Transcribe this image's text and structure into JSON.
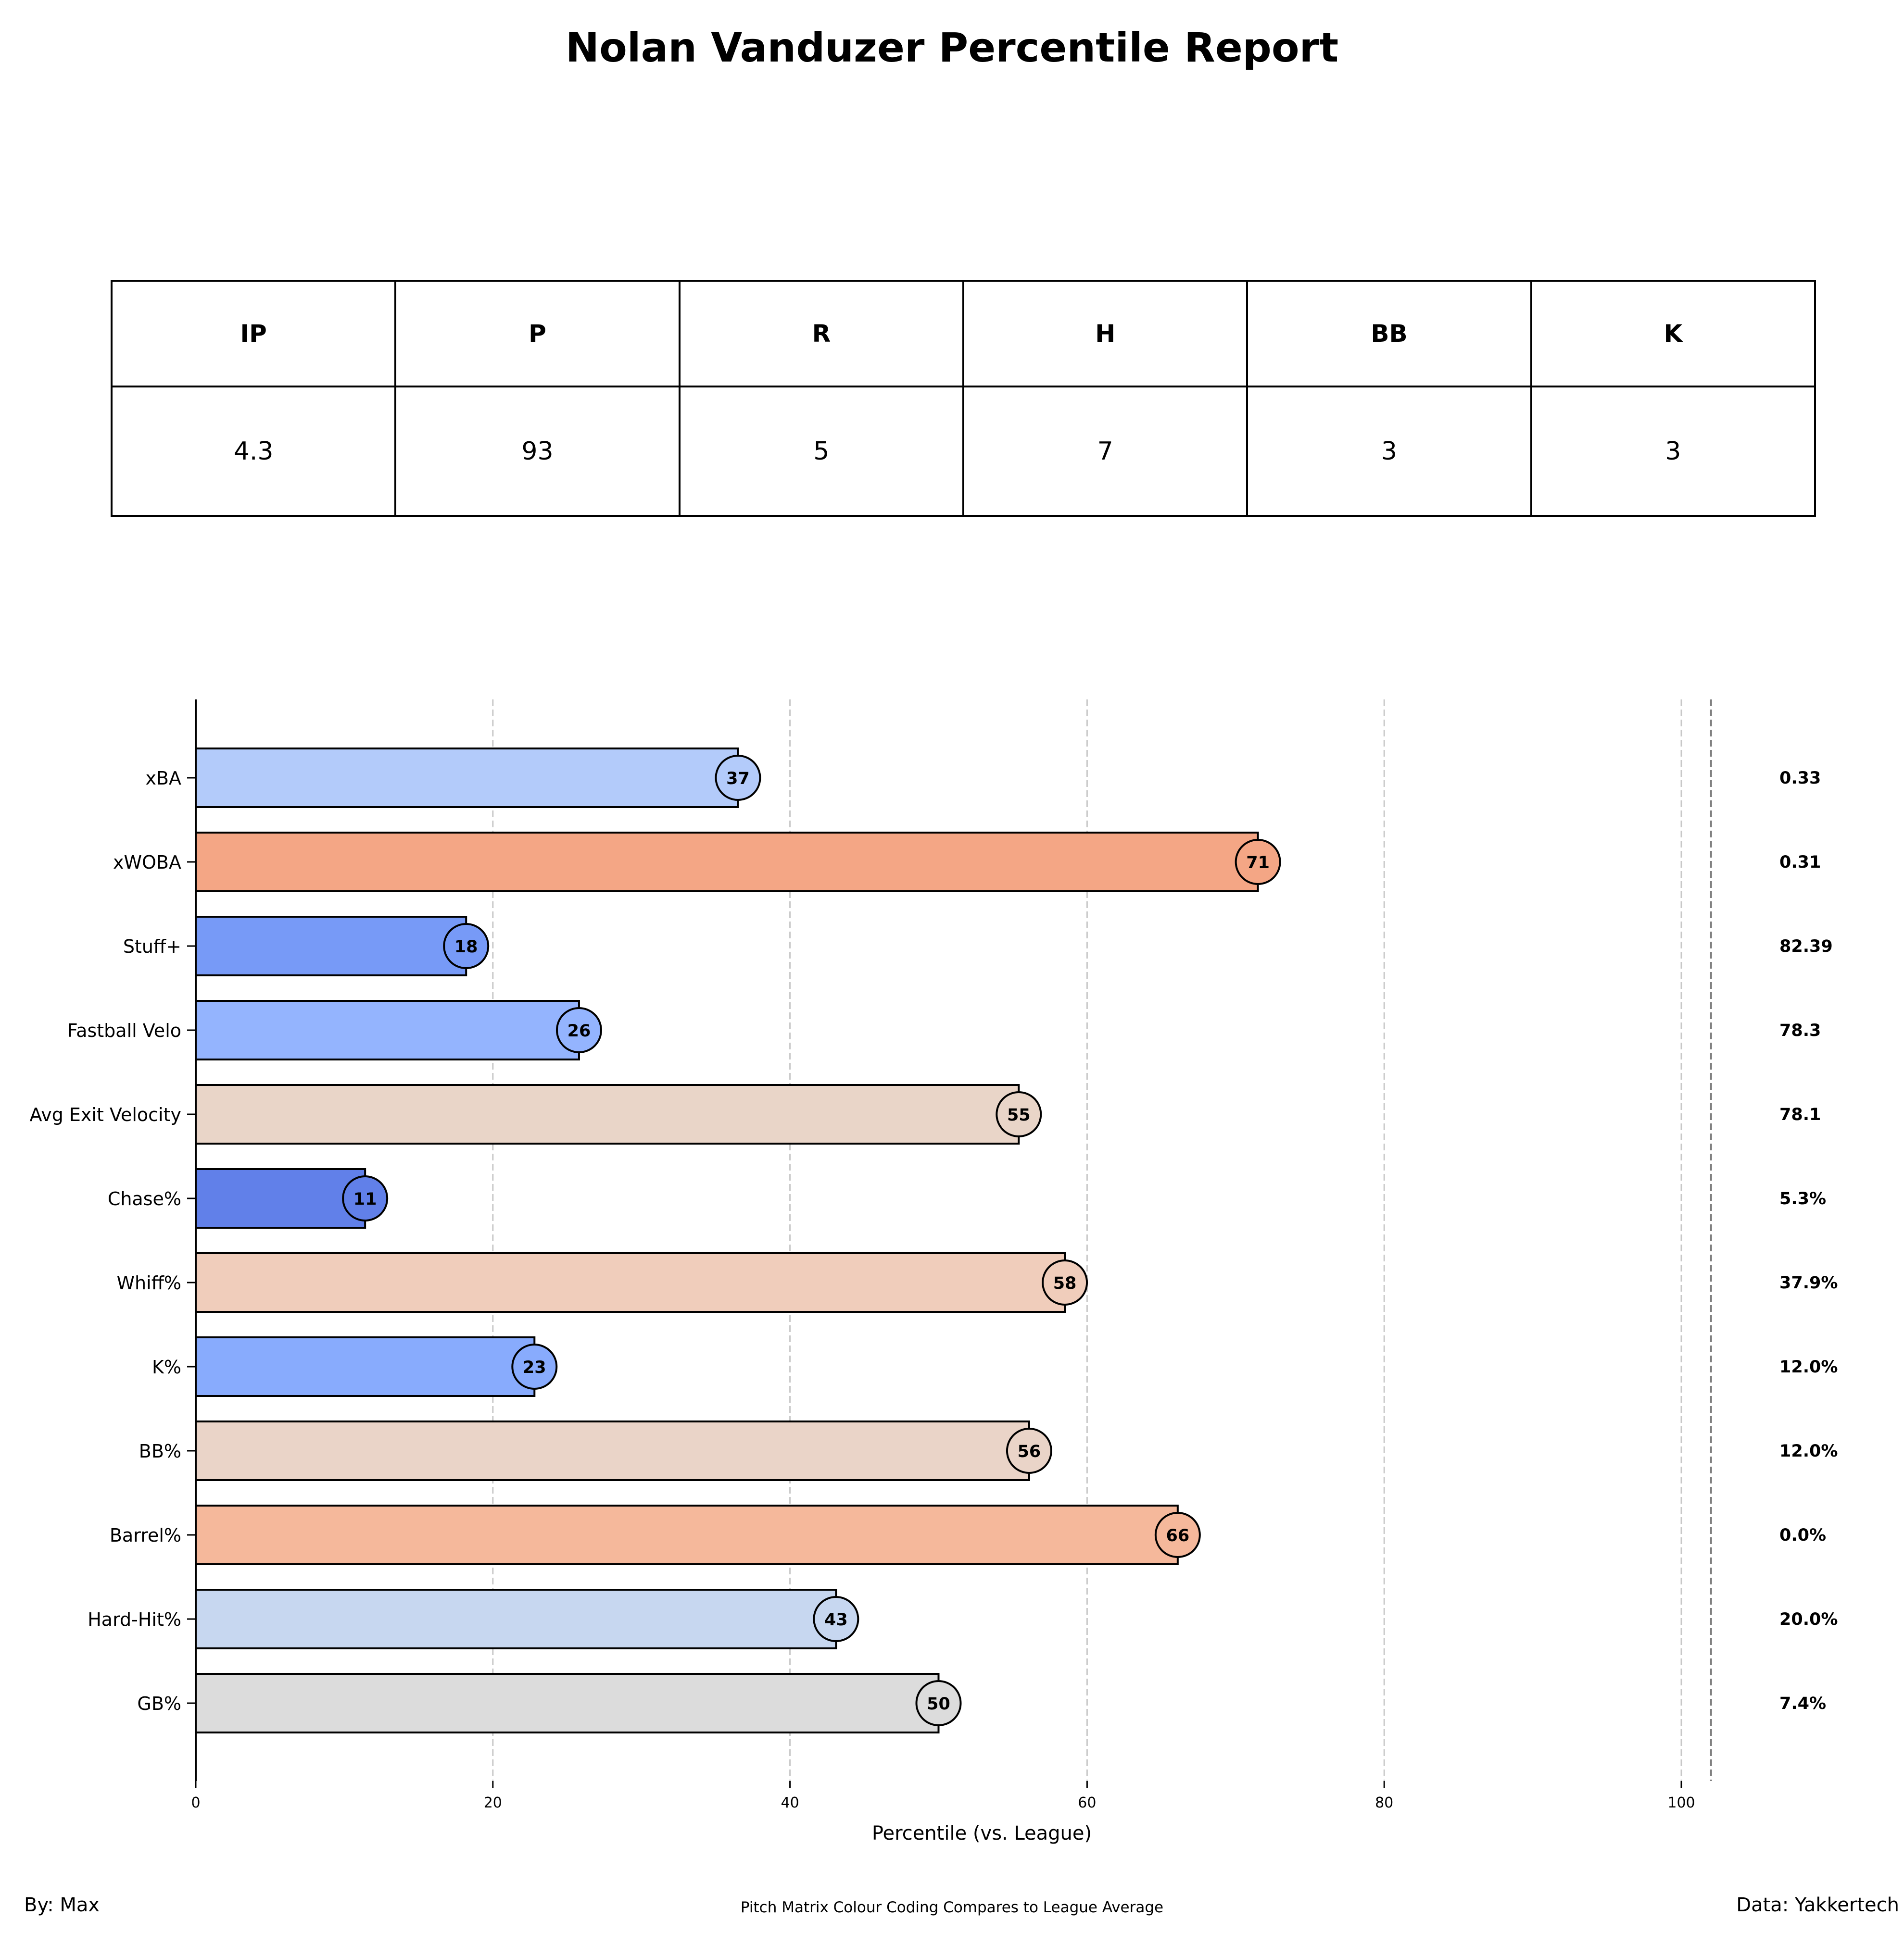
{
  "title": "Nolan Vanduzer Percentile Report",
  "stats_table": {
    "headers": [
      "IP",
      "P",
      "R",
      "H",
      "BB",
      "K"
    ],
    "values": [
      "4.3",
      "93",
      "5",
      "7",
      "3",
      "3"
    ]
  },
  "chart_data": {
    "type": "bar",
    "orientation": "horizontal",
    "categories": [
      "xBA",
      "xWOBA",
      "Stuff+",
      "Fastball Velo",
      "Avg Exit Velocity",
      "Chase%",
      "Whiff%",
      "K%",
      "BB%",
      "Barrel%",
      "Hard-Hit%",
      "GB%"
    ],
    "values": [
      37,
      71,
      18,
      26,
      55,
      11,
      58,
      23,
      56,
      66,
      43,
      50
    ],
    "bar_lengths": [
      36.5,
      71.5,
      18.2,
      25.8,
      55.4,
      11.4,
      58.5,
      22.8,
      56.1,
      66.1,
      43.1,
      50.0
    ],
    "stat_values": [
      "0.33",
      "0.31",
      "82.39",
      "78.3",
      "78.1",
      "5.3%",
      "37.9%",
      "12.0%",
      "12.0%",
      "0.0%",
      "20.0%",
      "7.4%"
    ],
    "colors": [
      "#b3cbfa",
      "#f4a685",
      "#779af7",
      "#94b4fe",
      "#e9d5c8",
      "#6180e9",
      "#f0cdbb",
      "#88abfd",
      "#ead4c8",
      "#f5b89b",
      "#c7d7f0",
      "#dcdcdc"
    ],
    "xlabel": "Percentile (vs. League)",
    "xlim": [
      0,
      110
    ],
    "xticks": [
      0,
      20,
      40,
      60,
      80,
      100
    ],
    "reference_line": 102,
    "grid": "vertical dashed"
  },
  "footer": {
    "left": "By: Max",
    "center": "Pitch Matrix Colour Coding Compares to League Average",
    "right": "Data: Yakkertech"
  }
}
